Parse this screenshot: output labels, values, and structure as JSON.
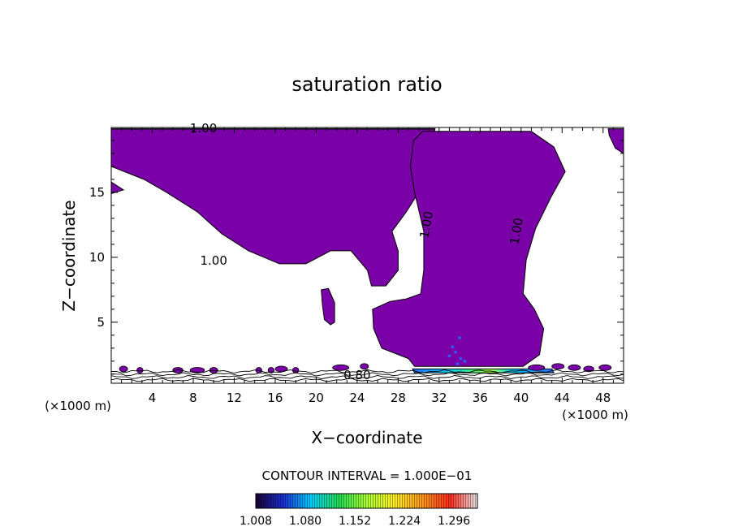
{
  "chart_data": {
    "type": "contour",
    "title": "saturation ratio",
    "xlabel": "X−coordinate",
    "ylabel": "Z−coordinate",
    "x_unit_left": "(×1000 m)",
    "x_unit_right": "(×1000 m)",
    "xlim": [
      0,
      50
    ],
    "ylim": [
      0.3,
      20
    ],
    "x_ticks": [
      4,
      8,
      12,
      16,
      20,
      24,
      28,
      32,
      36,
      40,
      44,
      48
    ],
    "y_ticks": [
      5,
      10,
      15
    ],
    "contour_interval_text": "CONTOUR INTERVAL = 1.000E−01",
    "contour_labels": [
      {
        "text": "1.00",
        "x": 9.0,
        "z": 19.9,
        "rotate": 0
      },
      {
        "text": "1.00",
        "x": 10.0,
        "z": 9.7,
        "rotate": 0
      },
      {
        "text": "1.00",
        "x": 30.8,
        "z": 12.5,
        "rotate": -80
      },
      {
        "text": "1.00",
        "x": 39.6,
        "z": 12.0,
        "rotate": -80
      },
      {
        "text": "0.80",
        "x": 24.0,
        "z": 0.9,
        "rotate": 0
      }
    ],
    "colorbar": {
      "min": 1.008,
      "max": 1.33,
      "tick_labels": [
        "1.008",
        "1.080",
        "1.152",
        "1.224",
        "1.296"
      ],
      "colormap": [
        "#1a0033",
        "#1a2fd6",
        "#00d0ff",
        "#22dd55",
        "#aaff33",
        "#ffee22",
        "#ff9a1a",
        "#ff2a1a",
        "#e8e8e8"
      ]
    },
    "colors": {
      "fill_purple": "#7a00a8",
      "contour_line": "#000000",
      "axis": "#000000"
    },
    "regions": [
      {
        "name": "upper-left cloud",
        "value": 1.008,
        "polygon": [
          [
            0,
            19.9
          ],
          [
            31.6,
            19.9
          ],
          [
            31.2,
            18.7
          ],
          [
            30.4,
            15.5
          ],
          [
            28.8,
            13.5
          ],
          [
            27.4,
            12.0
          ],
          [
            28.0,
            10.5
          ],
          [
            28.0,
            9.0
          ],
          [
            26.8,
            7.8
          ],
          [
            25.4,
            7.8
          ],
          [
            25.0,
            9.0
          ],
          [
            23.4,
            10.5
          ],
          [
            21.4,
            10.5
          ],
          [
            19.0,
            9.5
          ],
          [
            16.4,
            9.5
          ],
          [
            13.4,
            10.5
          ],
          [
            10.8,
            11.8
          ],
          [
            8.4,
            13.5
          ],
          [
            5.4,
            15.0
          ],
          [
            3.2,
            16.0
          ],
          [
            0,
            17.0
          ]
        ]
      },
      {
        "name": "upper-left cloud notch",
        "value": 1.008,
        "polygon": [
          [
            0,
            15.8
          ],
          [
            1.2,
            15.2
          ],
          [
            0,
            14.9
          ]
        ]
      },
      {
        "name": "small cloud",
        "value": 1.008,
        "polygon": [
          [
            20.5,
            7.5
          ],
          [
            21.2,
            7.6
          ],
          [
            21.8,
            6.5
          ],
          [
            21.8,
            5.0
          ],
          [
            21.4,
            4.8
          ],
          [
            20.8,
            5.2
          ],
          [
            20.6,
            6.4
          ]
        ]
      },
      {
        "name": "central cloud",
        "value": 1.008,
        "polygon": [
          [
            30.4,
            19.7
          ],
          [
            41.0,
            19.7
          ],
          [
            43.2,
            18.5
          ],
          [
            44.3,
            16.6
          ],
          [
            42.9,
            14.6
          ],
          [
            41.4,
            12.2
          ],
          [
            40.5,
            9.8
          ],
          [
            40.2,
            7.2
          ],
          [
            41.3,
            6.0
          ],
          [
            42.2,
            4.5
          ],
          [
            41.8,
            2.5
          ],
          [
            40.2,
            1.6
          ],
          [
            29.6,
            1.6
          ],
          [
            29.0,
            2.2
          ],
          [
            26.4,
            3.0
          ],
          [
            25.6,
            4.5
          ],
          [
            25.5,
            6.0
          ],
          [
            27.2,
            6.6
          ],
          [
            28.8,
            6.8
          ],
          [
            30.2,
            7.2
          ],
          [
            30.5,
            9.0
          ],
          [
            30.5,
            12.0
          ],
          [
            29.6,
            15.0
          ],
          [
            29.2,
            17.0
          ],
          [
            29.5,
            19.0
          ]
        ]
      },
      {
        "name": "upper-right cloud",
        "value": 1.008,
        "polygon": [
          [
            48.5,
            19.9
          ],
          [
            50,
            19.9
          ],
          [
            50,
            18.0
          ],
          [
            49.2,
            18.4
          ],
          [
            48.6,
            19.4
          ]
        ]
      },
      {
        "name": "low-level band",
        "value": 1.05,
        "polygon": [
          [
            29.4,
            1.4
          ],
          [
            43.0,
            1.4
          ],
          [
            43.2,
            1.1
          ],
          [
            29.6,
            1.1
          ]
        ]
      }
    ],
    "grid": false,
    "legend": "colorbar bottom-center"
  }
}
